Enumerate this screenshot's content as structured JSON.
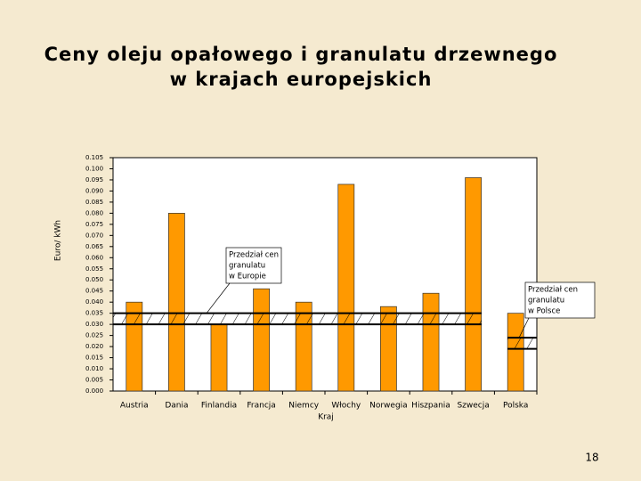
{
  "chart_data": {
    "type": "bar",
    "title_lines": [
      "Ceny oleju opałowego i granulatu drzewnego",
      "w krajach europejskich"
    ],
    "y_label": "Euro/ kWh",
    "x_label": "Kraj",
    "categories": [
      "Austria",
      "Dania",
      "Finlandia",
      "Francja",
      "Niemcy",
      "Włochy",
      "Norwegia",
      "Hiszpania",
      "Szwecja",
      "Polska"
    ],
    "values": [
      0.04,
      0.08,
      0.03,
      0.046,
      0.04,
      0.093,
      0.038,
      0.044,
      0.096,
      0.035
    ],
    "color": "#ff9900",
    "ylim": [
      0,
      0.105
    ],
    "yticks": [
      {
        "value": 0,
        "label": "0.000"
      },
      {
        "value": 0.005,
        "label": "0.005"
      },
      {
        "value": 0.01,
        "label": "0.010"
      },
      {
        "value": 0.015,
        "label": "0.015"
      },
      {
        "value": 0.02,
        "label": "0.020"
      },
      {
        "value": 0.025,
        "label": "0.025"
      },
      {
        "value": 0.03,
        "label": "0.030"
      },
      {
        "value": 0.035,
        "label": "0.035"
      },
      {
        "value": 0.04,
        "label": "0.040"
      },
      {
        "value": 0.045,
        "label": "0.045"
      },
      {
        "value": 0.05,
        "label": "0.050"
      },
      {
        "value": 0.055,
        "label": "0.055"
      },
      {
        "value": 0.06,
        "label": "0.060"
      },
      {
        "value": 0.065,
        "label": "0.065"
      },
      {
        "value": 0.07,
        "label": "0.070"
      },
      {
        "value": 0.075,
        "label": "0.075"
      },
      {
        "value": 0.08,
        "label": "0.080"
      },
      {
        "value": 0.085,
        "label": "0.085"
      },
      {
        "value": 0.09,
        "label": "0.090"
      },
      {
        "value": 0.095,
        "label": "0.095"
      },
      {
        "value": 0.1,
        "label": "0.100"
      },
      {
        "value": 0.105,
        "label": "0.105"
      }
    ],
    "europe_range": [
      0.03,
      0.035
    ],
    "europe_label": [
      "Przedział cen",
      "granulatu",
      "w Europie"
    ],
    "poland_range": [
      0.019,
      0.024
    ],
    "poland_label": [
      "Przedział cen",
      "granulatu",
      "w Polsce"
    ]
  },
  "page_number": "18"
}
